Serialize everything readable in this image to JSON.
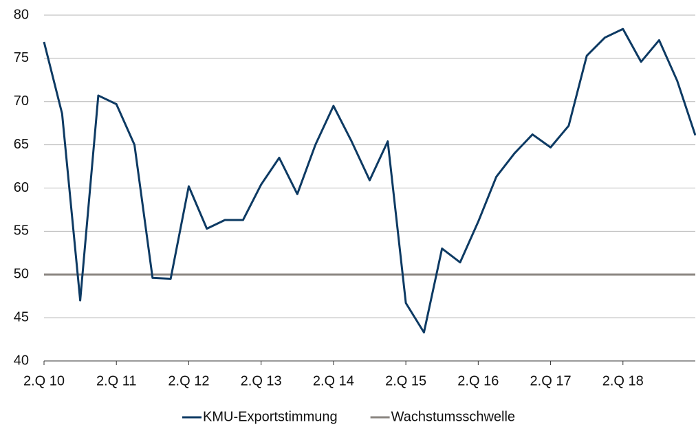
{
  "chart_data": {
    "type": "line",
    "categories": [
      "2.Q 10",
      null,
      null,
      null,
      "2.Q 11",
      null,
      null,
      null,
      "2.Q 12",
      null,
      null,
      null,
      "2.Q 13",
      null,
      null,
      null,
      "2.Q 14",
      null,
      null,
      null,
      "2.Q 15",
      null,
      null,
      null,
      "2.Q 16",
      null,
      null,
      null,
      "2.Q 17",
      null,
      null,
      null,
      "2.Q 18",
      null,
      null,
      null,
      null
    ],
    "series": [
      {
        "name": "KMU-Exportstimmung",
        "color": "#0d3a63",
        "values": [
          76.9,
          68.6,
          47.0,
          70.7,
          69.7,
          65.0,
          49.6,
          49.5,
          60.2,
          55.3,
          56.3,
          56.3,
          60.4,
          63.5,
          59.3,
          65.0,
          69.5,
          65.4,
          60.9,
          65.4,
          46.7,
          43.3,
          53.0,
          51.4,
          56.1,
          61.3,
          64.0,
          66.2,
          64.7,
          67.2,
          75.3,
          77.4,
          78.4,
          74.6,
          77.1,
          72.4,
          66.1
        ]
      },
      {
        "name": "Wachstumsschwelle",
        "color": "#8a8580",
        "values": [
          50,
          50,
          50,
          50,
          50,
          50,
          50,
          50,
          50,
          50,
          50,
          50,
          50,
          50,
          50,
          50,
          50,
          50,
          50,
          50,
          50,
          50,
          50,
          50,
          50,
          50,
          50,
          50,
          50,
          50,
          50,
          50,
          50,
          50,
          50,
          50,
          50
        ]
      }
    ],
    "ylim": [
      40,
      80
    ],
    "yticks": [
      40,
      45,
      50,
      55,
      60,
      65,
      70,
      75,
      80
    ],
    "grid": true,
    "legend": "bottom"
  }
}
